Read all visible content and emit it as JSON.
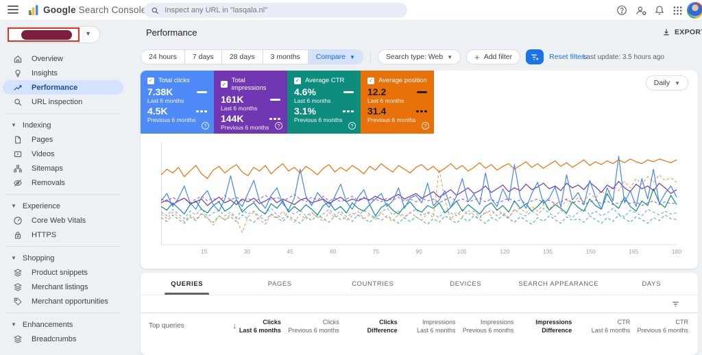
{
  "header": {
    "app_title_primary": "Google",
    "app_title_secondary": "Search Console",
    "search_placeholder": "Inspect any URL in \"lasqala.nl\""
  },
  "sidebar": {
    "sections": [
      {
        "items": [
          {
            "label": "Overview"
          },
          {
            "label": "Insights"
          },
          {
            "label": "Performance"
          },
          {
            "label": "URL inspection"
          }
        ]
      },
      {
        "header": "Indexing",
        "items": [
          {
            "label": "Pages"
          },
          {
            "label": "Videos"
          },
          {
            "label": "Sitemaps"
          },
          {
            "label": "Removals"
          }
        ]
      },
      {
        "header": "Experience",
        "items": [
          {
            "label": "Core Web Vitals"
          },
          {
            "label": "HTTPS"
          }
        ]
      },
      {
        "header": "Shopping",
        "items": [
          {
            "label": "Product snippets"
          },
          {
            "label": "Merchant listings"
          },
          {
            "label": "Merchant opportunities"
          }
        ]
      },
      {
        "header": "Enhancements",
        "items": [
          {
            "label": "Breadcrumbs"
          }
        ]
      }
    ]
  },
  "toolbar": {
    "title": "Performance",
    "export_label": "EXPORT",
    "date_ranges": [
      "24 hours",
      "7 days",
      "28 days",
      "3 months"
    ],
    "compare_label": "Compare",
    "search_type_label": "Search type: Web",
    "add_filter_label": "Add filter",
    "reset_label": "Reset filters",
    "last_update": "Last update: 3.5 hours ago"
  },
  "metrics": {
    "interval": "Daily",
    "cards": [
      {
        "label": "Total clicks",
        "current": "7.38K",
        "current_period": "Last 6 months",
        "previous": "4.5K",
        "previous_period": "Previous 6 months",
        "color": "#4e8af8"
      },
      {
        "label": "Total impressions",
        "current": "161K",
        "current_period": "Last 6 months",
        "previous": "144K",
        "previous_period": "Previous 6 months",
        "color": "#7136b2"
      },
      {
        "label": "Average CTR",
        "current": "4.6%",
        "current_period": "Last 6 months",
        "previous": "3.1%",
        "previous_period": "Previous 6 months",
        "color": "#0e8c7d"
      },
      {
        "label": "Average position",
        "current": "12.2",
        "current_period": "Last 6 months",
        "previous": "31.4",
        "previous_period": "Previous 6 months",
        "color": "#e8710a"
      }
    ]
  },
  "chart_data": {
    "type": "line",
    "x_axis_days_max": 180,
    "x_ticks": [
      15,
      30,
      45,
      60,
      75,
      90,
      105,
      120,
      135,
      150,
      165,
      180
    ],
    "y_unit": "relative 0-100 (normalized per metric, position axis inverted)",
    "legend_position": "in metric cards (solid = last 6 months, dashed = previous 6 months)",
    "grid": false,
    "series": [
      {
        "name": "CTR previous 6 months",
        "color": "#53b8a8",
        "dashed": true,
        "values": [
          26,
          22,
          29,
          24,
          20,
          27,
          23,
          30,
          25,
          21,
          28,
          24,
          27,
          22,
          29,
          25,
          21,
          27,
          23,
          30,
          26,
          22,
          28,
          24,
          20,
          27,
          23,
          29,
          25,
          21,
          28,
          24,
          26,
          22,
          29,
          25,
          21,
          27,
          23,
          28,
          24,
          20,
          26,
          22,
          27,
          23,
          19,
          25,
          21,
          28,
          24,
          20,
          26,
          22,
          28,
          24,
          20,
          26,
          23,
          29,
          25,
          21,
          27,
          23,
          19,
          26,
          22,
          28,
          24,
          20,
          27,
          23,
          25,
          21,
          28,
          24,
          20,
          26,
          22,
          29,
          25,
          21,
          27,
          24,
          20,
          26,
          23,
          29,
          25,
          24
        ]
      },
      {
        "name": "Clicks previous 6 months",
        "color": "#7baaf7",
        "dashed": true,
        "values": [
          32,
          28,
          35,
          30,
          25,
          33,
          29,
          36,
          27,
          31,
          34,
          28,
          32,
          26,
          35,
          30,
          33,
          27,
          31,
          36,
          29,
          25,
          33,
          30,
          34,
          28,
          32,
          26,
          30,
          35,
          29,
          33,
          27,
          31,
          28,
          34,
          30,
          26,
          32,
          36,
          29,
          33,
          27,
          31,
          35,
          28,
          32,
          30,
          26,
          34,
          31,
          28,
          35,
          29,
          33,
          27,
          31,
          34,
          28,
          32,
          26,
          35,
          30,
          28,
          33,
          29,
          36,
          31,
          27,
          34,
          30,
          26,
          32,
          35,
          29,
          33,
          28,
          31,
          36,
          30,
          27,
          34,
          31,
          28,
          35,
          32,
          29,
          33,
          30,
          31
        ]
      },
      {
        "name": "Position previous 6 months",
        "color": "#f2a25c",
        "dashed": true,
        "values": [
          30,
          25,
          32,
          27,
          22,
          29,
          24,
          31,
          26,
          18,
          28,
          23,
          30,
          25,
          10,
          27,
          32,
          24,
          19,
          29,
          25,
          33,
          26,
          21,
          30,
          24,
          31,
          27,
          22,
          32,
          26,
          30,
          23,
          28,
          33,
          25,
          29,
          24,
          31,
          26,
          22,
          30,
          25,
          32,
          27,
          23,
          31,
          26,
          78,
          45,
          24,
          32,
          27,
          34,
          29,
          25,
          33,
          28,
          35,
          30,
          26,
          34,
          36,
          31,
          38,
          33,
          40,
          35,
          42,
          37,
          45,
          40,
          48,
          43,
          52,
          47,
          55,
          50,
          60,
          55,
          65,
          58,
          68,
          62,
          70,
          64,
          72,
          66,
          69,
          64
        ]
      },
      {
        "name": "Impressions previous 6 months",
        "color": "#9a6bd4",
        "dashed": true,
        "values": [
          46,
          43,
          48,
          44,
          47,
          42,
          46,
          49,
          44,
          47,
          43,
          50,
          45,
          48,
          44,
          47,
          43,
          46,
          50,
          45,
          48,
          44,
          47,
          51,
          46,
          43,
          48,
          45,
          49,
          44,
          47,
          43,
          46,
          49,
          45,
          48,
          44,
          46,
          43,
          47,
          45,
          48,
          44,
          46,
          43,
          47,
          44,
          46,
          42,
          45,
          48,
          44,
          46,
          43,
          45,
          47,
          43,
          46,
          42,
          44,
          47,
          43,
          45,
          41,
          44,
          46,
          42,
          45,
          41,
          43,
          46,
          42,
          44,
          40,
          43,
          45,
          41,
          44,
          40,
          42,
          45,
          41,
          43,
          39,
          42,
          44,
          40,
          43,
          41,
          42
        ]
      },
      {
        "name": "CTR last 6 months",
        "color": "#0e8c7d",
        "dashed": false,
        "values": [
          38,
          34,
          42,
          36,
          30,
          40,
          44,
          35,
          31,
          39,
          43,
          33,
          37,
          45,
          32,
          38,
          42,
          34,
          30,
          41,
          36,
          44,
          32,
          38,
          33,
          40,
          35,
          29,
          39,
          43,
          34,
          38,
          31,
          42,
          36,
          33,
          40,
          28,
          37,
          41,
          34,
          30,
          38,
          43,
          35,
          32,
          39,
          36,
          42,
          31,
          37,
          44,
          33,
          40,
          35,
          30,
          38,
          42,
          34,
          39,
          32,
          44,
          36,
          41,
          33,
          38,
          45,
          34,
          40,
          36,
          31,
          43,
          37,
          33,
          46,
          39,
          35,
          52,
          41,
          36,
          48,
          38,
          33,
          44,
          39,
          57,
          42,
          37,
          50,
          40
        ]
      },
      {
        "name": "Impressions last 6 months",
        "color": "#7136b2",
        "dashed": false,
        "values": [
          42,
          45,
          40,
          44,
          47,
          41,
          43,
          46,
          39,
          44,
          48,
          42,
          45,
          40,
          46,
          43,
          47,
          41,
          44,
          48,
          42,
          46,
          43,
          40,
          45,
          47,
          42,
          44,
          46,
          41,
          45,
          48,
          43,
          46,
          44,
          47,
          45,
          49,
          46,
          44,
          48,
          51,
          46,
          49,
          52,
          47,
          50,
          54,
          48,
          52,
          56,
          50,
          54,
          58,
          52,
          55,
          60,
          53,
          57,
          61,
          54,
          58,
          55,
          62,
          56,
          59,
          63,
          57,
          60,
          55,
          63,
          58,
          61,
          56,
          64,
          59,
          53,
          61,
          57,
          65,
          58,
          54,
          62,
          57,
          60,
          55,
          63,
          58,
          52,
          56
        ]
      },
      {
        "name": "Clicks last 6 months",
        "color": "#4285f4",
        "dashed": false,
        "values": [
          44,
          52,
          38,
          47,
          60,
          42,
          35,
          48,
          55,
          40,
          33,
          46,
          71,
          45,
          38,
          52,
          66,
          44,
          36,
          50,
          58,
          41,
          34,
          47,
          78,
          49,
          39,
          53,
          45,
          37,
          49,
          62,
          43,
          35,
          48,
          56,
          40,
          46,
          52,
          38,
          44,
          58,
          36,
          47,
          50,
          42,
          63,
          39,
          45,
          55,
          37,
          49,
          68,
          43,
          51,
          40,
          74,
          46,
          38,
          57,
          44,
          83,
          48,
          36,
          52,
          64,
          41,
          47,
          59,
          38,
          72,
          45,
          53,
          40,
          66,
          48,
          35,
          58,
          44,
          92,
          42,
          55,
          38,
          68,
          46,
          78,
          41,
          52,
          60,
          48
        ]
      },
      {
        "name": "Position last 6 months",
        "color": "#e8710a",
        "dashed": false,
        "values": [
          72,
          78,
          74,
          80,
          70,
          76,
          82,
          73,
          68,
          77,
          81,
          74,
          79,
          83,
          75,
          71,
          80,
          76,
          82,
          73,
          79,
          84,
          76,
          80,
          74,
          81,
          77,
          72,
          79,
          83,
          75,
          80,
          76,
          82,
          78,
          73,
          81,
          77,
          84,
          79,
          75,
          82,
          78,
          74,
          80,
          83,
          77,
          81,
          75,
          79,
          84,
          78,
          82,
          76,
          80,
          85,
          79,
          83,
          77,
          81,
          84,
          78,
          82,
          86,
          80,
          84,
          79,
          83,
          87,
          81,
          85,
          80,
          84,
          88,
          82,
          86,
          83,
          87,
          84,
          88,
          85,
          89,
          86,
          84,
          88,
          86,
          89,
          87,
          85,
          88
        ]
      }
    ]
  },
  "tabs": {
    "items": [
      "QUERIES",
      "PAGES",
      "COUNTRIES",
      "DEVICES",
      "SEARCH APPEARANCE",
      "DAYS"
    ],
    "active": "QUERIES"
  },
  "table": {
    "row_label": "Top queries",
    "columns": [
      {
        "line1": "Clicks",
        "line2": "Last 6 months"
      },
      {
        "line1": "Clicks",
        "line2": "Previous 6 months"
      },
      {
        "line1": "Clicks",
        "line2": "Difference"
      },
      {
        "line1": "Impressions",
        "line2": "Last 6 months"
      },
      {
        "line1": "Impressions",
        "line2": "Previous 6 months"
      },
      {
        "line1": "Impressions",
        "line2": "Difference"
      },
      {
        "line1": "CTR",
        "line2": "Last 6 months"
      },
      {
        "line1": "CTR",
        "line2": "Previous 6 months"
      }
    ]
  }
}
